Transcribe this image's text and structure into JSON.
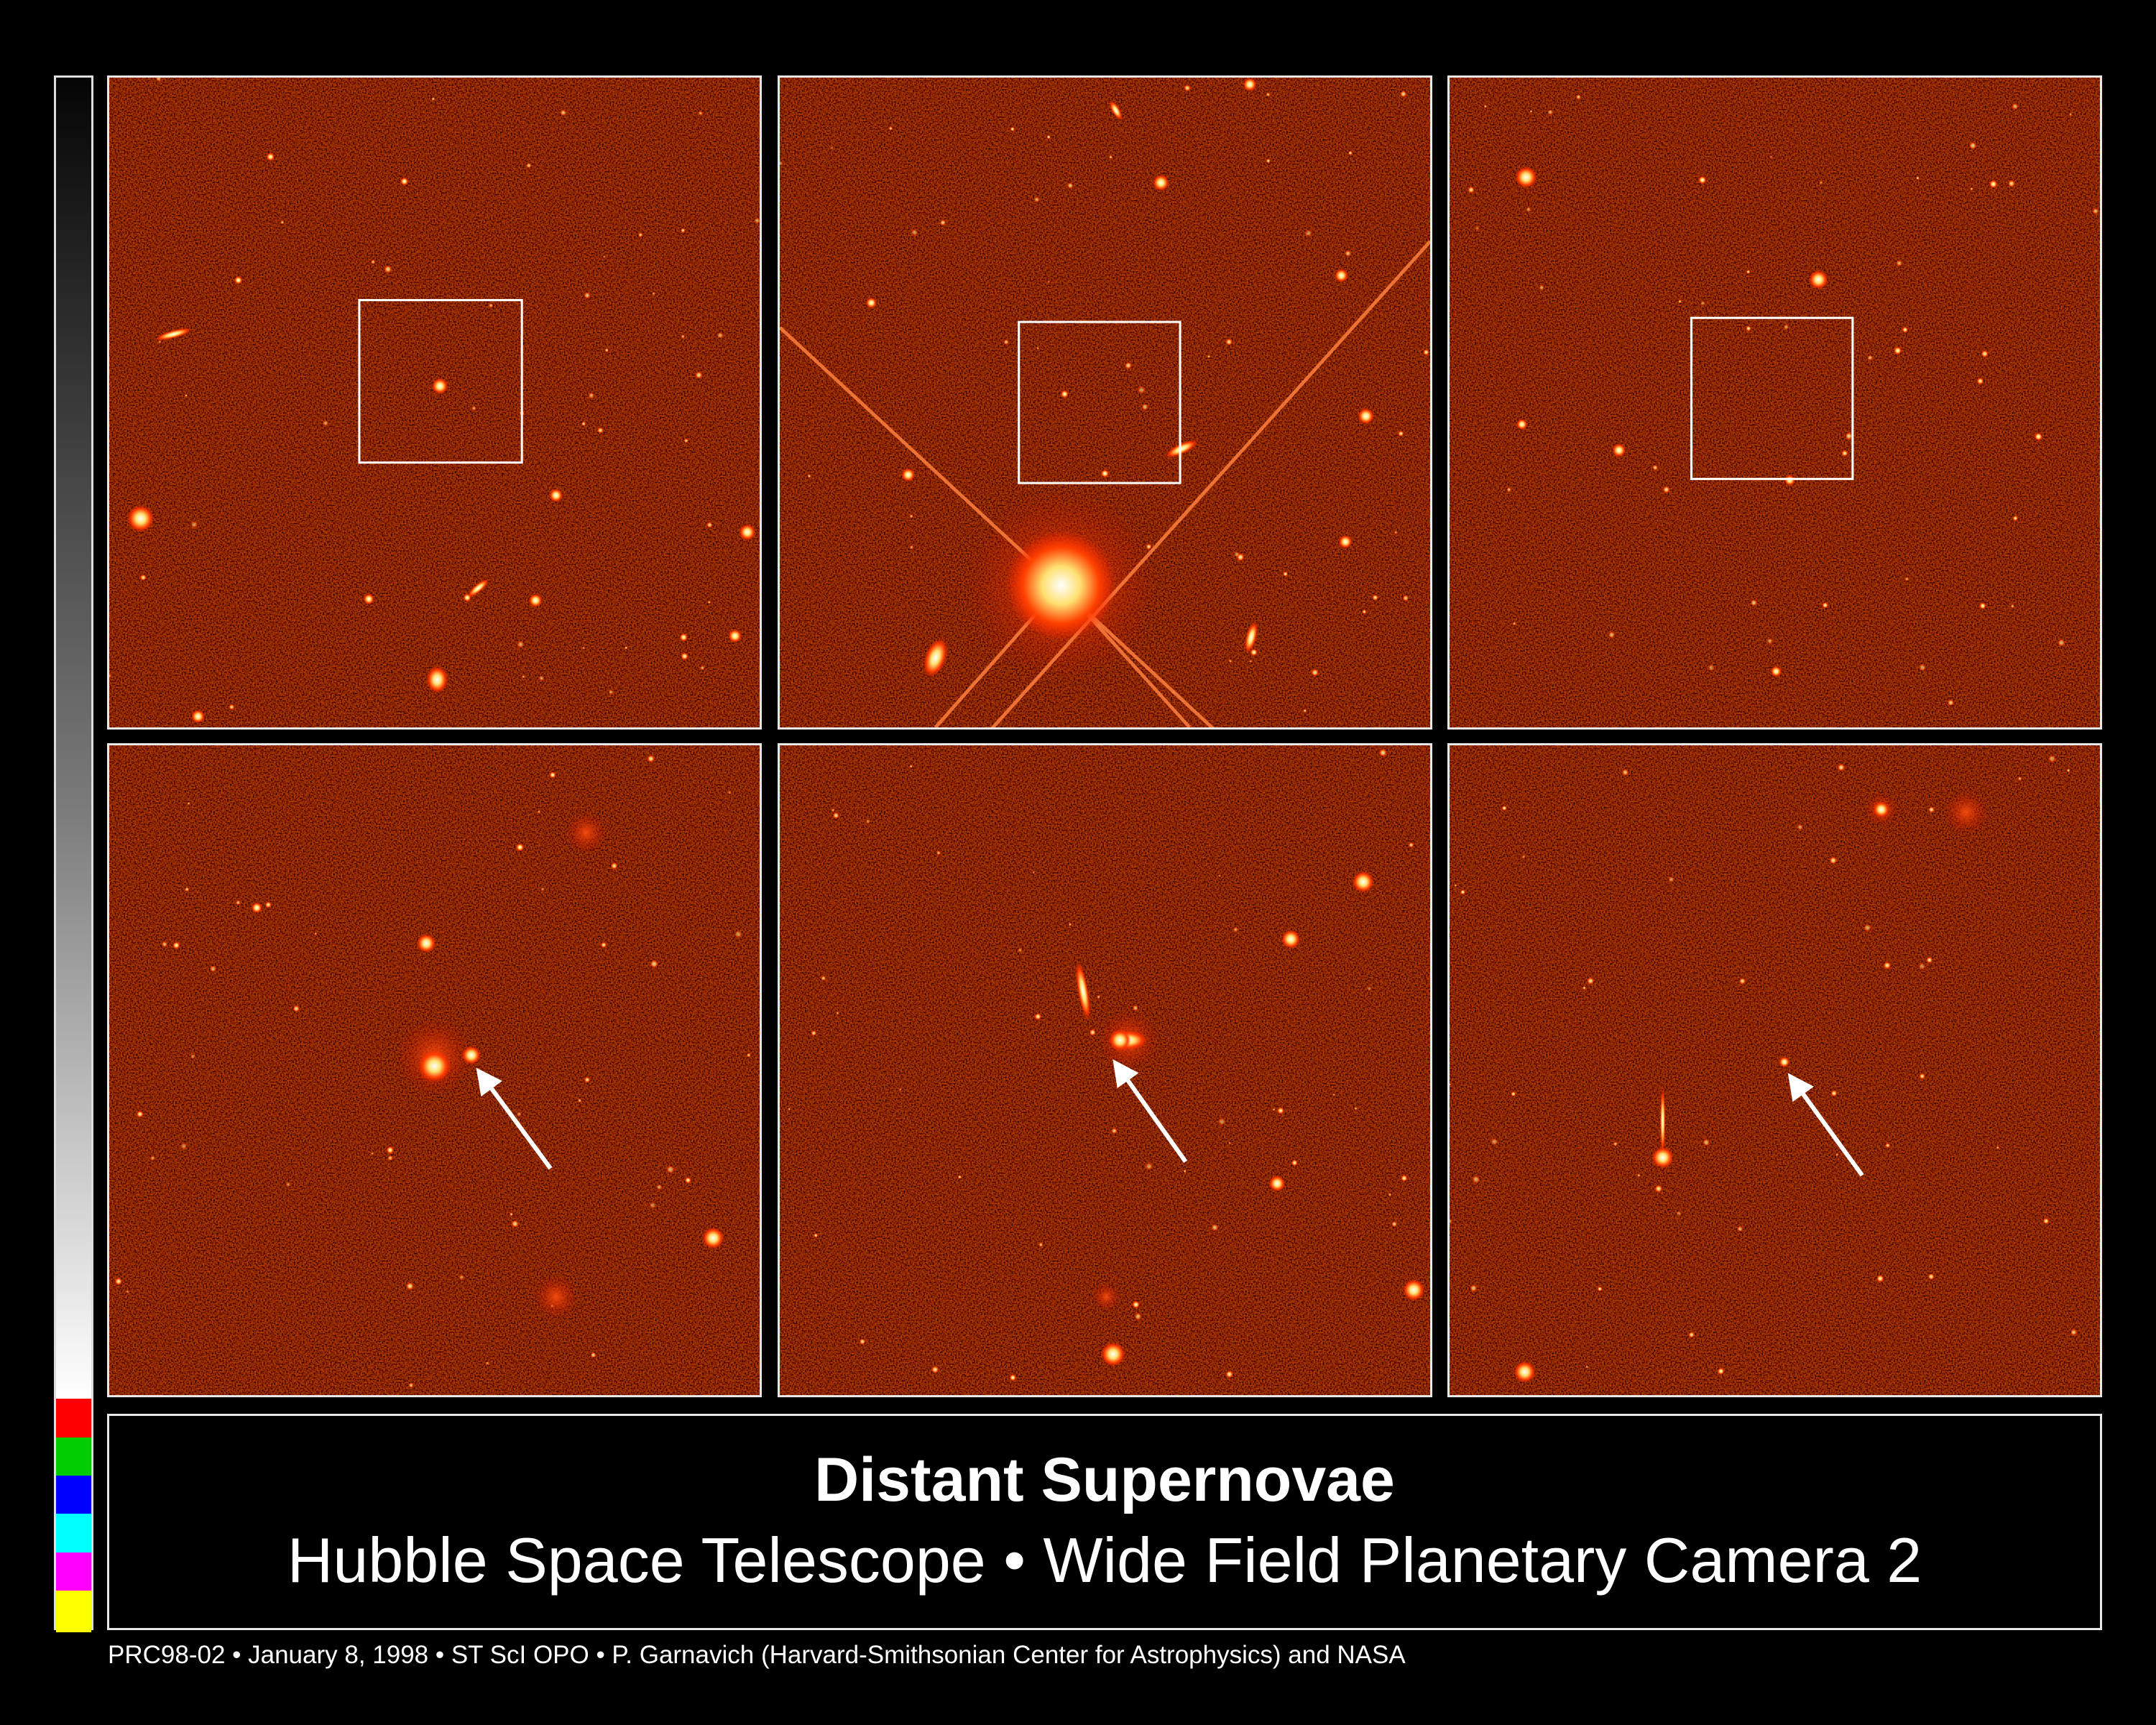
{
  "caption": {
    "title": "Distant Supernovae",
    "subtitle": "Hubble Space Telescope • Wide Field Planetary Camera 2"
  },
  "footer": {
    "credit": "PRC98-02 • January 8, 1998 • ST ScI OPO • P. Garnavich (Harvard-Smithsonian Center for Astrophysics) and NASA"
  },
  "colorbar": {
    "swatches": [
      "#ff0000",
      "#00cc00",
      "#0000ff",
      "#00ffff",
      "#ff00ff",
      "#ffff00"
    ]
  },
  "colors": {
    "sky_background": "#3a0600",
    "frame": "#e8e8e8"
  }
}
